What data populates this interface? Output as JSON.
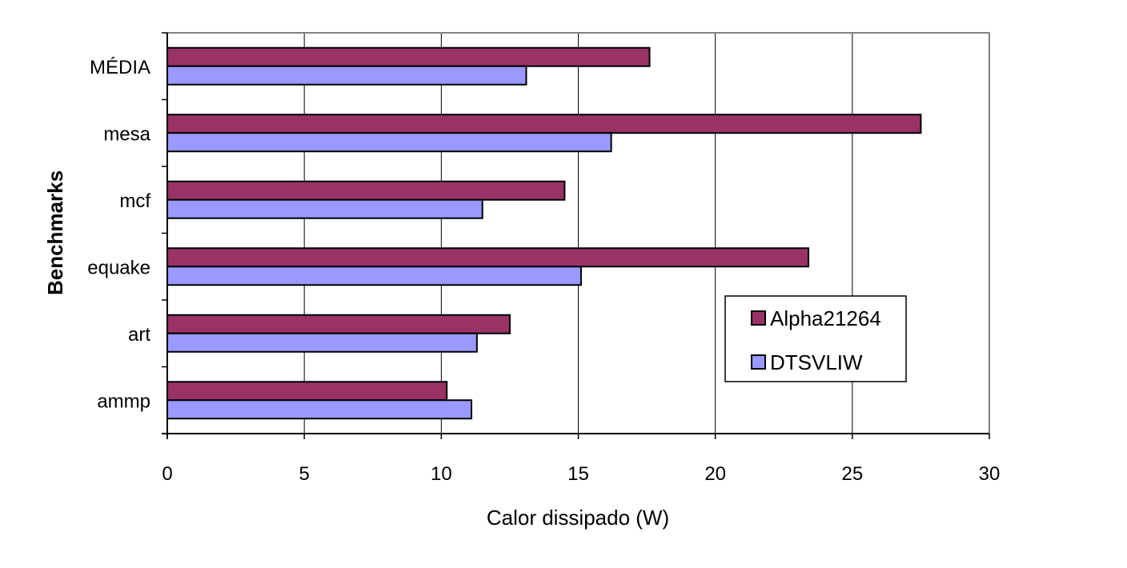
{
  "chart_data": {
    "type": "bar",
    "orientation": "horizontal",
    "categories": [
      "ammp",
      "art",
      "equake",
      "mcf",
      "mesa",
      "MÉDIA"
    ],
    "series": [
      {
        "name": "Alpha21264",
        "color": "#993366",
        "values": [
          10.2,
          12.5,
          23.4,
          14.5,
          27.5,
          17.6
        ]
      },
      {
        "name": "DTSVLIW",
        "color": "#9999ff",
        "values": [
          11.1,
          11.3,
          15.1,
          11.5,
          16.2,
          13.1
        ]
      }
    ],
    "xlabel": "Calor dissipado (W)",
    "ylabel": "Benchmarks",
    "xlim": [
      0,
      30
    ],
    "xticks": [
      "0",
      "5",
      "10",
      "15",
      "20",
      "25",
      "30"
    ],
    "grid": "vertical",
    "legend": {
      "position": "right",
      "entries": [
        "Alpha21264",
        "DTSVLIW"
      ]
    }
  }
}
